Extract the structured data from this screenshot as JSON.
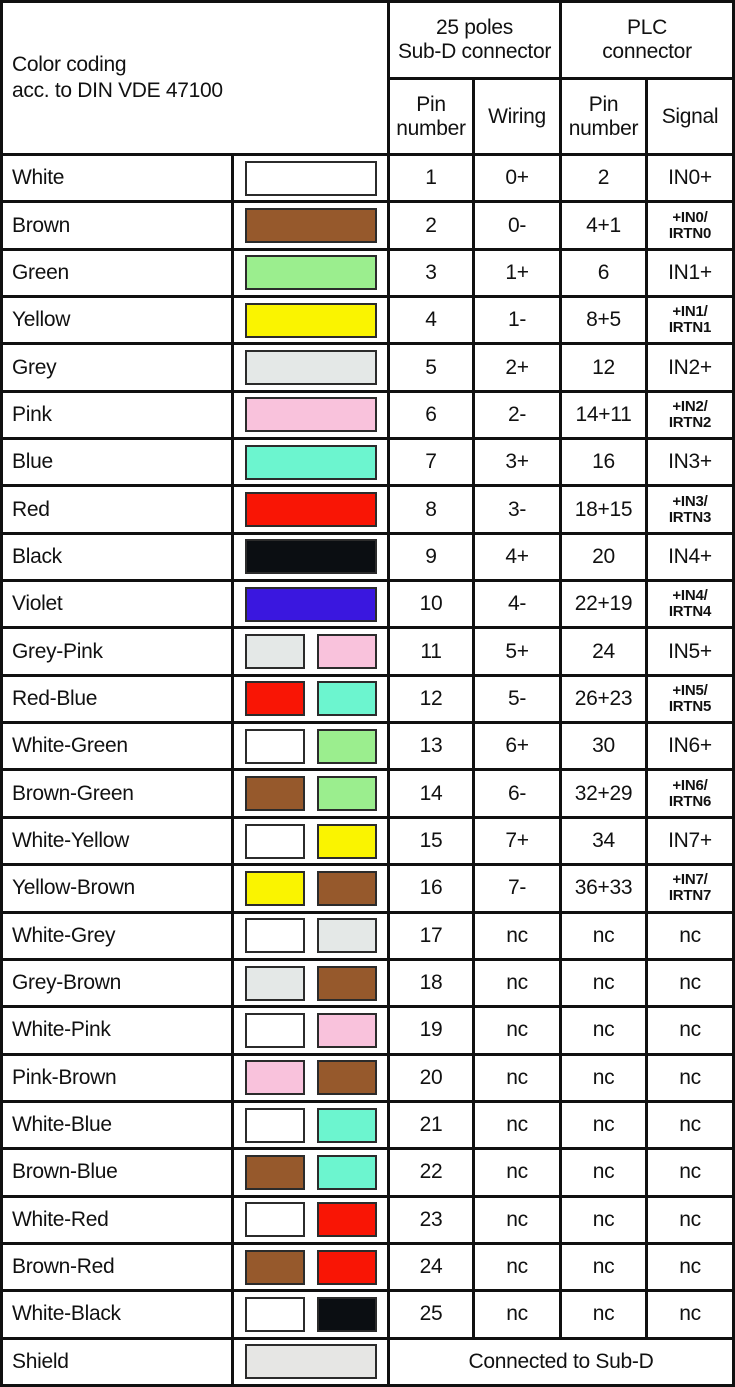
{
  "title": {
    "lines": [
      "Color coding",
      "acc. to DIN VDE 47100"
    ]
  },
  "header": {
    "subd_group": [
      "25 poles",
      "Sub-D connector"
    ],
    "plc_group": [
      "PLC",
      "connector"
    ],
    "subd_pin": [
      "Pin",
      "number"
    ],
    "wiring": [
      "Wiring"
    ],
    "plc_pin": [
      "Pin",
      "number"
    ],
    "signal": [
      "Signal"
    ]
  },
  "palette": {
    "white": "#FFFFFF",
    "brown": "#96592C",
    "green": "#9BEE8E",
    "yellow": "#FAF400",
    "grey": "#E4E8E7",
    "pink": "#F9C2DC",
    "blue": "#6CF5CF",
    "red": "#F91505",
    "black": "#0B0E12",
    "violet": "#3A17DF",
    "shield": "#E6E6E4"
  },
  "rows": [
    {
      "name": "White",
      "swatches": [
        "white"
      ],
      "subd_pin": "1",
      "wiring": "0+",
      "plc_pin": "2",
      "signal_lines": [
        "IN0+"
      ]
    },
    {
      "name": "Brown",
      "swatches": [
        "brown"
      ],
      "subd_pin": "2",
      "wiring": "0-",
      "plc_pin": "4+1",
      "signal_lines": [
        "+IN0/",
        "IRTN0"
      ]
    },
    {
      "name": "Green",
      "swatches": [
        "green"
      ],
      "subd_pin": "3",
      "wiring": "1+",
      "plc_pin": "6",
      "signal_lines": [
        "IN1+"
      ]
    },
    {
      "name": "Yellow",
      "swatches": [
        "yellow"
      ],
      "subd_pin": "4",
      "wiring": "1-",
      "plc_pin": "8+5",
      "signal_lines": [
        "+IN1/",
        "IRTN1"
      ]
    },
    {
      "name": "Grey",
      "swatches": [
        "grey"
      ],
      "subd_pin": "5",
      "wiring": "2+",
      "plc_pin": "12",
      "signal_lines": [
        "IN2+"
      ]
    },
    {
      "name": "Pink",
      "swatches": [
        "pink"
      ],
      "subd_pin": "6",
      "wiring": "2-",
      "plc_pin": "14+11",
      "signal_lines": [
        "+IN2/",
        "IRTN2"
      ]
    },
    {
      "name": "Blue",
      "swatches": [
        "blue"
      ],
      "subd_pin": "7",
      "wiring": "3+",
      "plc_pin": "16",
      "signal_lines": [
        "IN3+"
      ]
    },
    {
      "name": "Red",
      "swatches": [
        "red"
      ],
      "subd_pin": "8",
      "wiring": "3-",
      "plc_pin": "18+15",
      "signal_lines": [
        "+IN3/",
        "IRTN3"
      ]
    },
    {
      "name": "Black",
      "swatches": [
        "black"
      ],
      "subd_pin": "9",
      "wiring": "4+",
      "plc_pin": "20",
      "signal_lines": [
        "IN4+"
      ]
    },
    {
      "name": "Violet",
      "swatches": [
        "violet"
      ],
      "subd_pin": "10",
      "wiring": "4-",
      "plc_pin": "22+19",
      "signal_lines": [
        "+IN4/",
        "IRTN4"
      ]
    },
    {
      "name": "Grey-Pink",
      "swatches": [
        "grey",
        "pink"
      ],
      "subd_pin": "11",
      "wiring": "5+",
      "plc_pin": "24",
      "signal_lines": [
        "IN5+"
      ]
    },
    {
      "name": "Red-Blue",
      "swatches": [
        "red",
        "blue"
      ],
      "subd_pin": "12",
      "wiring": "5-",
      "plc_pin": "26+23",
      "signal_lines": [
        "+IN5/",
        "IRTN5"
      ]
    },
    {
      "name": "White-Green",
      "swatches": [
        "white",
        "green"
      ],
      "subd_pin": "13",
      "wiring": "6+",
      "plc_pin": "30",
      "signal_lines": [
        "IN6+"
      ]
    },
    {
      "name": "Brown-Green",
      "swatches": [
        "brown",
        "green"
      ],
      "subd_pin": "14",
      "wiring": "6-",
      "plc_pin": "32+29",
      "signal_lines": [
        "+IN6/",
        "IRTN6"
      ]
    },
    {
      "name": "White-Yellow",
      "swatches": [
        "white",
        "yellow"
      ],
      "subd_pin": "15",
      "wiring": "7+",
      "plc_pin": "34",
      "signal_lines": [
        "IN7+"
      ]
    },
    {
      "name": "Yellow-Brown",
      "swatches": [
        "yellow",
        "brown"
      ],
      "subd_pin": "16",
      "wiring": "7-",
      "plc_pin": "36+33",
      "signal_lines": [
        "+IN7/",
        "IRTN7"
      ]
    },
    {
      "name": "White-Grey",
      "swatches": [
        "white",
        "grey"
      ],
      "subd_pin": "17",
      "wiring": "nc",
      "plc_pin": "nc",
      "signal_lines": [
        "nc"
      ]
    },
    {
      "name": "Grey-Brown",
      "swatches": [
        "grey",
        "brown"
      ],
      "subd_pin": "18",
      "wiring": "nc",
      "plc_pin": "nc",
      "signal_lines": [
        "nc"
      ]
    },
    {
      "name": "White-Pink",
      "swatches": [
        "white",
        "pink"
      ],
      "subd_pin": "19",
      "wiring": "nc",
      "plc_pin": "nc",
      "signal_lines": [
        "nc"
      ]
    },
    {
      "name": "Pink-Brown",
      "swatches": [
        "pink",
        "brown"
      ],
      "subd_pin": "20",
      "wiring": "nc",
      "plc_pin": "nc",
      "signal_lines": [
        "nc"
      ]
    },
    {
      "name": "White-Blue",
      "swatches": [
        "white",
        "blue"
      ],
      "subd_pin": "21",
      "wiring": "nc",
      "plc_pin": "nc",
      "signal_lines": [
        "nc"
      ]
    },
    {
      "name": "Brown-Blue",
      "swatches": [
        "brown",
        "blue"
      ],
      "subd_pin": "22",
      "wiring": "nc",
      "plc_pin": "nc",
      "signal_lines": [
        "nc"
      ]
    },
    {
      "name": "White-Red",
      "swatches": [
        "white",
        "red"
      ],
      "subd_pin": "23",
      "wiring": "nc",
      "plc_pin": "nc",
      "signal_lines": [
        "nc"
      ]
    },
    {
      "name": "Brown-Red",
      "swatches": [
        "brown",
        "red"
      ],
      "subd_pin": "24",
      "wiring": "nc",
      "plc_pin": "nc",
      "signal_lines": [
        "nc"
      ]
    },
    {
      "name": "White-Black",
      "swatches": [
        "white",
        "black"
      ],
      "subd_pin": "25",
      "wiring": "nc",
      "plc_pin": "nc",
      "signal_lines": [
        "nc"
      ]
    }
  ],
  "shield_row": {
    "name": "Shield",
    "swatches": [
      "shield"
    ],
    "note": "Connected to Sub-D"
  }
}
